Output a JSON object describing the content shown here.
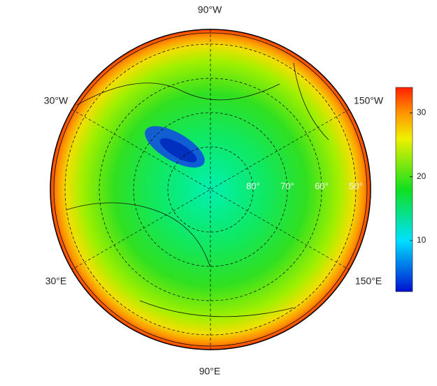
{
  "map": {
    "longitude_labels": [
      "90°W",
      "30°W",
      "150°W",
      "30°E",
      "150°E",
      "90°E"
    ],
    "latitude_circles": [
      80,
      70,
      60,
      50
    ],
    "latitude_labels": [
      "80°",
      "70°",
      "60°",
      "50°"
    ]
  },
  "colorbar": {
    "range": [
      2,
      34
    ],
    "ticks": [
      10,
      20,
      30
    ]
  }
}
